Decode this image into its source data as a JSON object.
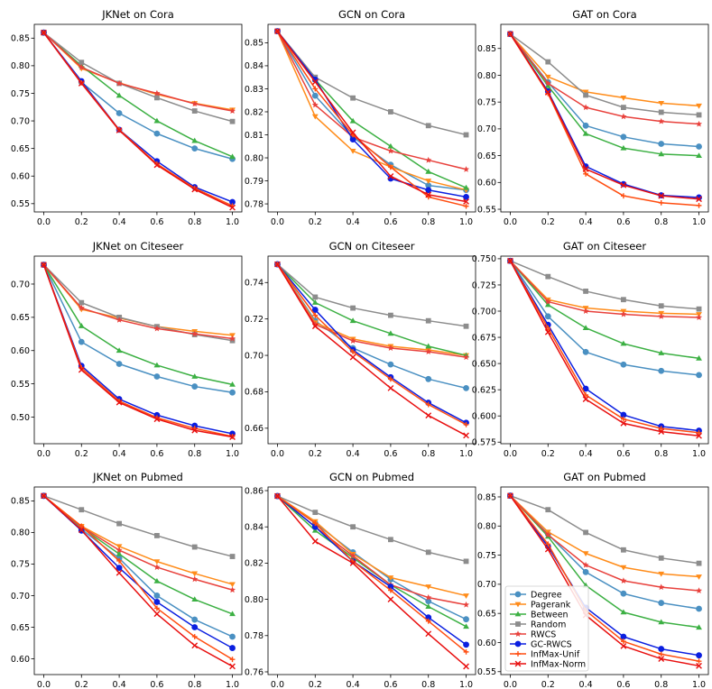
{
  "x": [
    0.0,
    0.2,
    0.4,
    0.6,
    0.8,
    1.0
  ],
  "x_tick_labels": [
    "0.0",
    "0.2",
    "0.4",
    "0.6",
    "0.8",
    "1.0"
  ],
  "series_meta": [
    {
      "name": "Degree",
      "color": "#4a90c2",
      "marker": "circle"
    },
    {
      "name": "Pagerank",
      "color": "#ff8c1a",
      "marker": "triangle-down"
    },
    {
      "name": "Between",
      "color": "#3cb043",
      "marker": "triangle-up"
    },
    {
      "name": "Random",
      "color": "#8c8c8c",
      "marker": "square"
    },
    {
      "name": "RWCS",
      "color": "#e8413c",
      "marker": "star"
    },
    {
      "name": "GC-RWCS",
      "color": "#0b1fe0",
      "marker": "circle"
    },
    {
      "name": "InfMax-Unif",
      "color": "#ff4d10",
      "marker": "plus"
    },
    {
      "name": "InfMax-Norm",
      "color": "#e80f0f",
      "marker": "x"
    }
  ],
  "chart_data": [
    {
      "type": "line",
      "title": "JKNet on Cora",
      "ylim": [
        0.535,
        0.875
      ],
      "yticks": [
        0.55,
        0.6,
        0.65,
        0.7,
        0.75,
        0.8,
        0.85
      ],
      "ytick_labels": [
        "0.55",
        "0.60",
        "0.65",
        "0.70",
        "0.75",
        "0.80",
        "0.85"
      ],
      "series": [
        {
          "name": "Degree",
          "values": [
            0.86,
            0.77,
            0.714,
            0.677,
            0.65,
            0.631
          ]
        },
        {
          "name": "Pagerank",
          "values": [
            0.86,
            0.795,
            0.769,
            0.748,
            0.732,
            0.72
          ]
        },
        {
          "name": "Between",
          "values": [
            0.86,
            0.8,
            0.746,
            0.7,
            0.664,
            0.635
          ]
        },
        {
          "name": "Random",
          "values": [
            0.86,
            0.806,
            0.768,
            0.742,
            0.718,
            0.699
          ]
        },
        {
          "name": "RWCS",
          "values": [
            0.86,
            0.797,
            0.768,
            0.75,
            0.731,
            0.718
          ]
        },
        {
          "name": "GC-RWCS",
          "values": [
            0.86,
            0.772,
            0.684,
            0.627,
            0.58,
            0.553
          ]
        },
        {
          "name": "InfMax-Unif",
          "values": [
            0.86,
            0.769,
            0.684,
            0.622,
            0.578,
            0.546
          ]
        },
        {
          "name": "InfMax-Norm",
          "values": [
            0.86,
            0.768,
            0.683,
            0.62,
            0.576,
            0.543
          ]
        }
      ]
    },
    {
      "type": "line",
      "title": "GCN on Cora",
      "ylim": [
        0.7765,
        0.858
      ],
      "yticks": [
        0.78,
        0.79,
        0.8,
        0.81,
        0.82,
        0.83,
        0.84,
        0.85
      ],
      "ytick_labels": [
        "0.78",
        "0.79",
        "0.80",
        "0.81",
        "0.82",
        "0.83",
        "0.84",
        "0.85"
      ],
      "series": [
        {
          "name": "Degree",
          "values": [
            0.855,
            0.827,
            0.809,
            0.797,
            0.788,
            0.786
          ]
        },
        {
          "name": "Pagerank",
          "values": [
            0.855,
            0.818,
            0.803,
            0.796,
            0.79,
            0.786
          ]
        },
        {
          "name": "Between",
          "values": [
            0.855,
            0.834,
            0.816,
            0.805,
            0.794,
            0.787
          ]
        },
        {
          "name": "Random",
          "values": [
            0.855,
            0.835,
            0.826,
            0.82,
            0.814,
            0.81
          ]
        },
        {
          "name": "RWCS",
          "values": [
            0.855,
            0.823,
            0.809,
            0.803,
            0.799,
            0.795
          ]
        },
        {
          "name": "GC-RWCS",
          "values": [
            0.855,
            0.834,
            0.808,
            0.791,
            0.786,
            0.783
          ]
        },
        {
          "name": "InfMax-Unif",
          "values": [
            0.855,
            0.83,
            0.81,
            0.796,
            0.783,
            0.779
          ]
        },
        {
          "name": "InfMax-Norm",
          "values": [
            0.855,
            0.833,
            0.811,
            0.792,
            0.784,
            0.781
          ]
        }
      ]
    },
    {
      "type": "line",
      "title": "GAT on Cora",
      "ylim": [
        0.545,
        0.895
      ],
      "yticks": [
        0.55,
        0.6,
        0.65,
        0.7,
        0.75,
        0.8,
        0.85
      ],
      "ytick_labels": [
        "0.55",
        "0.60",
        "0.65",
        "0.70",
        "0.75",
        "0.80",
        "0.85"
      ],
      "series": [
        {
          "name": "Degree",
          "values": [
            0.877,
            0.787,
            0.706,
            0.685,
            0.672,
            0.667
          ]
        },
        {
          "name": "Pagerank",
          "values": [
            0.877,
            0.797,
            0.769,
            0.758,
            0.748,
            0.743
          ]
        },
        {
          "name": "Between",
          "values": [
            0.877,
            0.78,
            0.691,
            0.664,
            0.653,
            0.65
          ]
        },
        {
          "name": "Random",
          "values": [
            0.877,
            0.825,
            0.763,
            0.74,
            0.731,
            0.726
          ]
        },
        {
          "name": "RWCS",
          "values": [
            0.877,
            0.785,
            0.74,
            0.723,
            0.714,
            0.709
          ]
        },
        {
          "name": "GC-RWCS",
          "values": [
            0.877,
            0.77,
            0.63,
            0.597,
            0.576,
            0.572
          ]
        },
        {
          "name": "InfMax-Unif",
          "values": [
            0.877,
            0.766,
            0.616,
            0.575,
            0.562,
            0.557
          ]
        },
        {
          "name": "InfMax-Norm",
          "values": [
            0.877,
            0.768,
            0.625,
            0.595,
            0.575,
            0.569
          ]
        }
      ]
    },
    {
      "type": "line",
      "title": "JKNet on Citeseer",
      "ylim": [
        0.46,
        0.742
      ],
      "yticks": [
        0.5,
        0.55,
        0.6,
        0.65,
        0.7
      ],
      "ytick_labels": [
        "0.50",
        "0.55",
        "0.60",
        "0.65",
        "0.70"
      ],
      "series": [
        {
          "name": "Degree",
          "values": [
            0.729,
            0.613,
            0.58,
            0.561,
            0.546,
            0.537
          ]
        },
        {
          "name": "Pagerank",
          "values": [
            0.729,
            0.662,
            0.649,
            0.636,
            0.629,
            0.623
          ]
        },
        {
          "name": "Between",
          "values": [
            0.729,
            0.637,
            0.6,
            0.578,
            0.561,
            0.549
          ]
        },
        {
          "name": "Random",
          "values": [
            0.729,
            0.672,
            0.65,
            0.636,
            0.624,
            0.615
          ]
        },
        {
          "name": "RWCS",
          "values": [
            0.729,
            0.664,
            0.646,
            0.633,
            0.625,
            0.618
          ]
        },
        {
          "name": "GC-RWCS",
          "values": [
            0.729,
            0.577,
            0.527,
            0.503,
            0.487,
            0.475
          ]
        },
        {
          "name": "InfMax-Unif",
          "values": [
            0.729,
            0.574,
            0.524,
            0.499,
            0.483,
            0.471
          ]
        },
        {
          "name": "InfMax-Norm",
          "values": [
            0.729,
            0.571,
            0.522,
            0.497,
            0.48,
            0.47
          ]
        }
      ]
    },
    {
      "type": "line",
      "title": "GCN on Citeseer",
      "ylim": [
        0.6515,
        0.7545
      ],
      "yticks": [
        0.66,
        0.68,
        0.7,
        0.72,
        0.74
      ],
      "ytick_labels": [
        "0.66",
        "0.68",
        "0.70",
        "0.72",
        "0.74"
      ],
      "series": [
        {
          "name": "Degree",
          "values": [
            0.75,
            0.719,
            0.704,
            0.695,
            0.687,
            0.682
          ]
        },
        {
          "name": "Pagerank",
          "values": [
            0.75,
            0.718,
            0.709,
            0.705,
            0.703,
            0.7
          ]
        },
        {
          "name": "Between",
          "values": [
            0.75,
            0.729,
            0.719,
            0.712,
            0.705,
            0.7
          ]
        },
        {
          "name": "Random",
          "values": [
            0.75,
            0.732,
            0.726,
            0.722,
            0.719,
            0.716
          ]
        },
        {
          "name": "RWCS",
          "values": [
            0.75,
            0.717,
            0.708,
            0.704,
            0.702,
            0.699
          ]
        },
        {
          "name": "GC-RWCS",
          "values": [
            0.75,
            0.725,
            0.703,
            0.688,
            0.674,
            0.663
          ]
        },
        {
          "name": "InfMax-Unif",
          "values": [
            0.75,
            0.722,
            0.702,
            0.687,
            0.673,
            0.662
          ]
        },
        {
          "name": "InfMax-Norm",
          "values": [
            0.75,
            0.716,
            0.699,
            0.682,
            0.667,
            0.656
          ]
        }
      ]
    },
    {
      "type": "line",
      "title": "GAT on Citeseer",
      "ylim": [
        0.5735,
        0.7525
      ],
      "yticks": [
        0.575,
        0.6,
        0.625,
        0.65,
        0.675,
        0.7,
        0.725,
        0.75
      ],
      "ytick_labels": [
        "0.575",
        "0.600",
        "0.625",
        "0.650",
        "0.675",
        "0.700",
        "0.725",
        "0.750"
      ],
      "series": [
        {
          "name": "Degree",
          "values": [
            0.748,
            0.695,
            0.661,
            0.649,
            0.643,
            0.639
          ]
        },
        {
          "name": "Pagerank",
          "values": [
            0.748,
            0.711,
            0.703,
            0.7,
            0.698,
            0.697
          ]
        },
        {
          "name": "Between",
          "values": [
            0.748,
            0.706,
            0.684,
            0.669,
            0.66,
            0.655
          ]
        },
        {
          "name": "Random",
          "values": [
            0.748,
            0.733,
            0.719,
            0.711,
            0.705,
            0.702
          ]
        },
        {
          "name": "RWCS",
          "values": [
            0.748,
            0.709,
            0.7,
            0.697,
            0.695,
            0.694
          ]
        },
        {
          "name": "GC-RWCS",
          "values": [
            0.748,
            0.687,
            0.626,
            0.601,
            0.59,
            0.586
          ]
        },
        {
          "name": "InfMax-Unif",
          "values": [
            0.748,
            0.684,
            0.62,
            0.597,
            0.588,
            0.584
          ]
        },
        {
          "name": "InfMax-Norm",
          "values": [
            0.748,
            0.68,
            0.616,
            0.593,
            0.585,
            0.581
          ]
        }
      ]
    },
    {
      "type": "line",
      "title": "JKNet on Pubmed",
      "ylim": [
        0.575,
        0.872
      ],
      "yticks": [
        0.6,
        0.65,
        0.7,
        0.75,
        0.8,
        0.85
      ],
      "ytick_labels": [
        "0.60",
        "0.65",
        "0.70",
        "0.75",
        "0.80",
        "0.85"
      ],
      "series": [
        {
          "name": "Degree",
          "values": [
            0.858,
            0.805,
            0.759,
            0.7,
            0.662,
            0.635
          ]
        },
        {
          "name": "Pagerank",
          "values": [
            0.858,
            0.81,
            0.778,
            0.754,
            0.735,
            0.718
          ]
        },
        {
          "name": "Between",
          "values": [
            0.858,
            0.808,
            0.766,
            0.723,
            0.694,
            0.671
          ]
        },
        {
          "name": "Random",
          "values": [
            0.858,
            0.836,
            0.814,
            0.795,
            0.777,
            0.762
          ]
        },
        {
          "name": "RWCS",
          "values": [
            0.858,
            0.809,
            0.772,
            0.745,
            0.726,
            0.709
          ]
        },
        {
          "name": "GC-RWCS",
          "values": [
            0.858,
            0.803,
            0.744,
            0.69,
            0.65,
            0.617
          ]
        },
        {
          "name": "InfMax-Unif",
          "values": [
            0.858,
            0.81,
            0.755,
            0.68,
            0.635,
            0.599
          ]
        },
        {
          "name": "InfMax-Norm",
          "values": [
            0.858,
            0.804,
            0.736,
            0.671,
            0.621,
            0.588
          ]
        }
      ]
    },
    {
      "type": "line",
      "title": "GCN on Pubmed",
      "ylim": [
        0.7585,
        0.862
      ],
      "yticks": [
        0.76,
        0.78,
        0.8,
        0.82,
        0.84,
        0.86
      ],
      "ytick_labels": [
        "0.76",
        "0.78",
        "0.80",
        "0.82",
        "0.84",
        "0.86"
      ],
      "series": [
        {
          "name": "Degree",
          "values": [
            0.857,
            0.842,
            0.826,
            0.811,
            0.799,
            0.789
          ]
        },
        {
          "name": "Pagerank",
          "values": [
            0.857,
            0.843,
            0.825,
            0.812,
            0.807,
            0.802
          ]
        },
        {
          "name": "Between",
          "values": [
            0.857,
            0.838,
            0.823,
            0.808,
            0.796,
            0.785
          ]
        },
        {
          "name": "Random",
          "values": [
            0.857,
            0.848,
            0.84,
            0.833,
            0.826,
            0.821
          ]
        },
        {
          "name": "RWCS",
          "values": [
            0.857,
            0.84,
            0.824,
            0.808,
            0.801,
            0.797
          ]
        },
        {
          "name": "GC-RWCS",
          "values": [
            0.857,
            0.84,
            0.821,
            0.807,
            0.79,
            0.775
          ]
        },
        {
          "name": "InfMax-Unif",
          "values": [
            0.857,
            0.842,
            0.821,
            0.805,
            0.788,
            0.771
          ]
        },
        {
          "name": "InfMax-Norm",
          "values": [
            0.857,
            0.832,
            0.82,
            0.8,
            0.781,
            0.763
          ]
        }
      ]
    },
    {
      "type": "line",
      "title": "GAT on Pubmed",
      "ylim": [
        0.545,
        0.867
      ],
      "yticks": [
        0.55,
        0.6,
        0.65,
        0.7,
        0.75,
        0.8,
        0.85
      ],
      "ytick_labels": [
        "0.55",
        "0.60",
        "0.65",
        "0.70",
        "0.75",
        "0.80",
        "0.85"
      ],
      "legend": "lower-left",
      "series": [
        {
          "name": "Degree",
          "values": [
            0.852,
            0.786,
            0.721,
            0.684,
            0.668,
            0.658
          ]
        },
        {
          "name": "Pagerank",
          "values": [
            0.852,
            0.79,
            0.753,
            0.729,
            0.718,
            0.713
          ]
        },
        {
          "name": "Between",
          "values": [
            0.852,
            0.782,
            0.698,
            0.652,
            0.635,
            0.626
          ]
        },
        {
          "name": "Random",
          "values": [
            0.852,
            0.828,
            0.789,
            0.759,
            0.745,
            0.736
          ]
        },
        {
          "name": "RWCS",
          "values": [
            0.852,
            0.785,
            0.733,
            0.706,
            0.695,
            0.689
          ]
        },
        {
          "name": "GC-RWCS",
          "values": [
            0.852,
            0.765,
            0.66,
            0.61,
            0.589,
            0.578
          ]
        },
        {
          "name": "InfMax-Unif",
          "values": [
            0.852,
            0.769,
            0.655,
            0.602,
            0.58,
            0.568
          ]
        },
        {
          "name": "InfMax-Norm",
          "values": [
            0.852,
            0.76,
            0.647,
            0.594,
            0.572,
            0.56
          ]
        }
      ]
    }
  ]
}
